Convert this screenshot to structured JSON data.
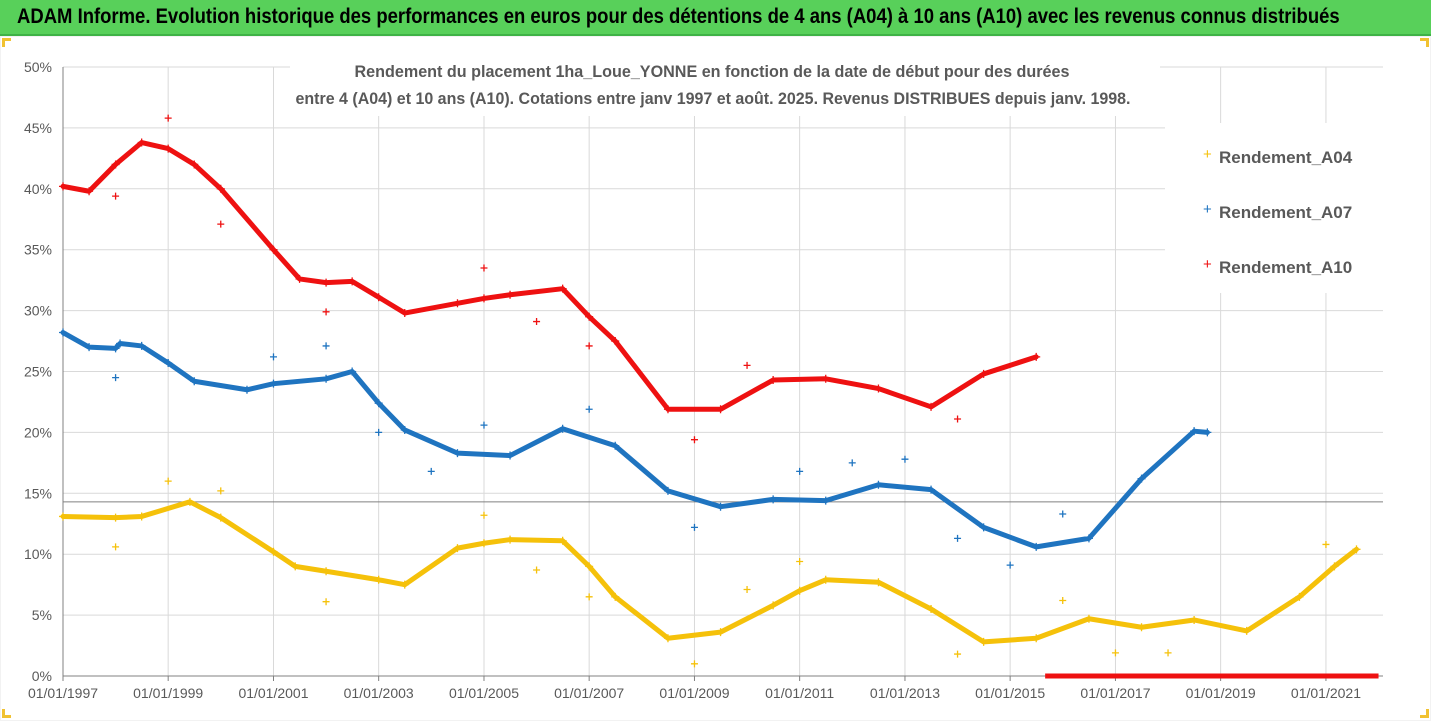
{
  "header": {
    "title": "ADAM Informe. Evolution historique des performances en euros pour des détentions de 4 ans (A04) à 10 ans (A10) avec les revenus connus distribués"
  },
  "colors": {
    "banner": "#58d05a",
    "A04": "#f5c10a",
    "A07": "#1f74c0",
    "A10": "#ee1111",
    "grid": "#d9d9d9",
    "axis": "#808080",
    "refline": "#808080"
  },
  "chart_data": {
    "type": "scatter",
    "title_line1": "Rendement du placement 1ha_Loue_YONNE en fonction de la date de début pour des durées",
    "title_line2": "entre 4 (A04) et 10 ans (A10). Cotations entre janv 1997 et août. 2025. Revenus DISTRIBUES depuis janv. 1998.",
    "xlabel": "",
    "ylabel": "",
    "xlim": [
      "1997-01-01",
      "2022-02-01"
    ],
    "ylim": [
      0,
      50
    ],
    "y_unit": "%",
    "y_ticks": [
      "0%",
      "5%",
      "10%",
      "15%",
      "20%",
      "25%",
      "30%",
      "35%",
      "40%",
      "45%",
      "50%"
    ],
    "x_ticks": [
      "01/01/1997",
      "01/01/1999",
      "01/01/2001",
      "01/01/2003",
      "01/01/2005",
      "01/01/2007",
      "01/01/2009",
      "01/01/2011",
      "01/01/2013",
      "01/01/2015",
      "01/01/2017",
      "01/01/2019",
      "01/01/2021"
    ],
    "grid": "horizontal and vertical",
    "legend_position": "right",
    "reference_line_y": 14.3,
    "series": [
      {
        "name": "Rendement_A04",
        "color": "#f5c10a",
        "points": [
          [
            "1997-01-01",
            13.1
          ],
          [
            "1998-01-01",
            13.0
          ],
          [
            "1998-07-01",
            13.1
          ],
          [
            "1999-06-01",
            14.3
          ],
          [
            "2000-01-01",
            13.0
          ],
          [
            "2001-01-01",
            10.2
          ],
          [
            "2001-06-01",
            9.0
          ],
          [
            "2002-01-01",
            8.6
          ],
          [
            "2003-01-01",
            7.9
          ],
          [
            "2003-07-01",
            7.5
          ],
          [
            "2004-07-01",
            10.5
          ],
          [
            "2005-01-01",
            10.9
          ],
          [
            "2005-07-01",
            11.2
          ],
          [
            "2006-07-01",
            11.1
          ],
          [
            "2007-01-01",
            9.0
          ],
          [
            "2007-07-01",
            6.5
          ],
          [
            "2008-07-01",
            3.1
          ],
          [
            "2009-07-01",
            3.6
          ],
          [
            "2010-07-01",
            5.8
          ],
          [
            "2011-01-01",
            7.0
          ],
          [
            "2011-07-01",
            7.9
          ],
          [
            "2012-07-01",
            7.7
          ],
          [
            "2013-07-01",
            5.5
          ],
          [
            "2014-07-01",
            2.8
          ],
          [
            "2015-07-01",
            3.1
          ],
          [
            "2016-07-01",
            4.7
          ],
          [
            "2017-07-01",
            4.0
          ],
          [
            "2018-07-01",
            4.6
          ],
          [
            "2019-07-01",
            3.7
          ],
          [
            "2020-07-01",
            6.5
          ],
          [
            "2021-03-01",
            9.0
          ],
          [
            "2021-08-01",
            10.4
          ]
        ],
        "scatter": [
          [
            "1998-01-01",
            10.6
          ],
          [
            "1999-01-01",
            16.0
          ],
          [
            "2000-01-01",
            15.2
          ],
          [
            "2002-01-01",
            6.1
          ],
          [
            "2005-01-01",
            13.2
          ],
          [
            "2006-01-01",
            8.7
          ],
          [
            "2007-01-01",
            6.5
          ],
          [
            "2009-01-01",
            1.0
          ],
          [
            "2010-01-01",
            7.1
          ],
          [
            "2011-01-01",
            9.4
          ],
          [
            "2014-01-01",
            1.8
          ],
          [
            "2016-01-01",
            6.2
          ],
          [
            "2017-01-01",
            1.9
          ],
          [
            "2018-01-01",
            1.9
          ],
          [
            "2021-01-01",
            10.8
          ]
        ]
      },
      {
        "name": "Rendement_A07",
        "color": "#1f74c0",
        "points": [
          [
            "1997-01-01",
            28.2
          ],
          [
            "1997-07-01",
            27.0
          ],
          [
            "1998-01-01",
            26.9
          ],
          [
            "1998-02-01",
            27.3
          ],
          [
            "1998-07-01",
            27.1
          ],
          [
            "1999-01-01",
            25.7
          ],
          [
            "1999-07-01",
            24.2
          ],
          [
            "2000-07-01",
            23.5
          ],
          [
            "2001-01-01",
            24.0
          ],
          [
            "2002-01-01",
            24.4
          ],
          [
            "2002-07-01",
            25.0
          ],
          [
            "2003-01-01",
            22.4
          ],
          [
            "2003-07-01",
            20.2
          ],
          [
            "2004-07-01",
            18.3
          ],
          [
            "2005-07-01",
            18.1
          ],
          [
            "2006-07-01",
            20.3
          ],
          [
            "2007-07-01",
            18.9
          ],
          [
            "2008-07-01",
            15.2
          ],
          [
            "2009-07-01",
            13.9
          ],
          [
            "2010-07-01",
            14.5
          ],
          [
            "2011-07-01",
            14.4
          ],
          [
            "2012-07-01",
            15.7
          ],
          [
            "2013-07-01",
            15.3
          ],
          [
            "2014-07-01",
            12.2
          ],
          [
            "2015-07-01",
            10.6
          ],
          [
            "2016-07-01",
            11.3
          ],
          [
            "2017-07-01",
            16.2
          ],
          [
            "2018-07-01",
            20.1
          ],
          [
            "2018-10-01",
            20.0
          ]
        ],
        "scatter": [
          [
            "1998-01-01",
            24.5
          ],
          [
            "2001-01-01",
            26.2
          ],
          [
            "2002-01-01",
            27.1
          ],
          [
            "2003-01-01",
            20.0
          ],
          [
            "2004-01-01",
            16.8
          ],
          [
            "2005-01-01",
            20.6
          ],
          [
            "2007-01-01",
            21.9
          ],
          [
            "2009-01-01",
            12.2
          ],
          [
            "2011-01-01",
            16.8
          ],
          [
            "2012-01-01",
            17.5
          ],
          [
            "2013-01-01",
            17.8
          ],
          [
            "2014-01-01",
            11.3
          ],
          [
            "2015-01-01",
            9.1
          ],
          [
            "2016-01-01",
            13.3
          ]
        ]
      },
      {
        "name": "Rendement_A10",
        "color": "#ee1111",
        "points": [
          [
            "1997-01-01",
            40.2
          ],
          [
            "1997-07-01",
            39.8
          ],
          [
            "1998-01-01",
            42.0
          ],
          [
            "1998-07-01",
            43.8
          ],
          [
            "1999-01-01",
            43.3
          ],
          [
            "1999-07-01",
            42.0
          ],
          [
            "2000-01-01",
            40.0
          ],
          [
            "2001-01-01",
            35.0
          ],
          [
            "2001-07-01",
            32.6
          ],
          [
            "2002-01-01",
            32.3
          ],
          [
            "2002-07-01",
            32.4
          ],
          [
            "2003-01-01",
            31.1
          ],
          [
            "2003-07-01",
            29.8
          ],
          [
            "2004-07-01",
            30.6
          ],
          [
            "2005-01-01",
            31.0
          ],
          [
            "2005-07-01",
            31.3
          ],
          [
            "2006-07-01",
            31.8
          ],
          [
            "2007-01-01",
            29.5
          ],
          [
            "2007-07-01",
            27.5
          ],
          [
            "2008-07-01",
            21.9
          ],
          [
            "2009-07-01",
            21.9
          ],
          [
            "2010-07-01",
            24.3
          ],
          [
            "2011-07-01",
            24.4
          ],
          [
            "2012-07-01",
            23.6
          ],
          [
            "2013-07-01",
            22.1
          ],
          [
            "2014-07-01",
            24.8
          ],
          [
            "2015-07-01",
            26.2
          ]
        ],
        "scatter": [
          [
            "1998-01-01",
            39.4
          ],
          [
            "1999-01-01",
            45.8
          ],
          [
            "2000-01-01",
            37.1
          ],
          [
            "2002-01-01",
            29.9
          ],
          [
            "2005-01-01",
            33.5
          ],
          [
            "2006-01-01",
            29.1
          ],
          [
            "2007-01-01",
            27.1
          ],
          [
            "2009-01-01",
            19.4
          ],
          [
            "2010-01-01",
            25.5
          ],
          [
            "2014-01-01",
            21.1
          ]
        ],
        "zero_segment": [
          [
            "2015-09-01",
            0
          ],
          [
            "2022-01-01",
            0
          ]
        ]
      }
    ]
  }
}
